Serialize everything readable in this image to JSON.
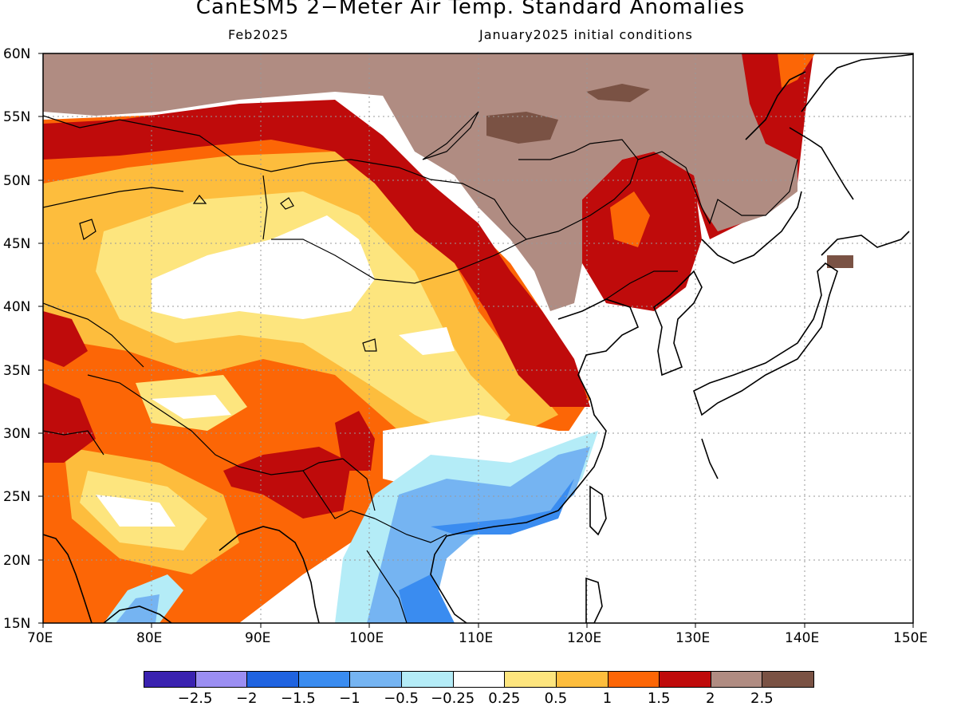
{
  "title": "CanESM5 2−Meter Air Temp. Standard Anomalies",
  "subtitle_left": "Feb2025",
  "subtitle_right": "January2025 initial conditions",
  "lat_labels": [
    "60N",
    "55N",
    "50N",
    "45N",
    "40N",
    "35N",
    "30N",
    "25N",
    "20N",
    "15N"
  ],
  "lon_labels": [
    "70E",
    "80E",
    "90E",
    "100E",
    "110E",
    "120E",
    "130E",
    "140E",
    "150E"
  ],
  "colorbar": {
    "colors": [
      "#3a22b0",
      "#9b8ef2",
      "#1f63e0",
      "#3a8cf0",
      "#75b4f2",
      "#b4ecf7",
      "#ffffff",
      "#fde57e",
      "#fdbd3d",
      "#fc6606",
      "#bf0b0b",
      "#b08c82",
      "#7a5244"
    ],
    "labels": [
      "−2.5",
      "−2",
      "−1.5",
      "−1",
      "−0.5",
      "−0.25",
      "0.25",
      "0.5",
      "1",
      "1.5",
      "2",
      "2.5"
    ]
  }
}
